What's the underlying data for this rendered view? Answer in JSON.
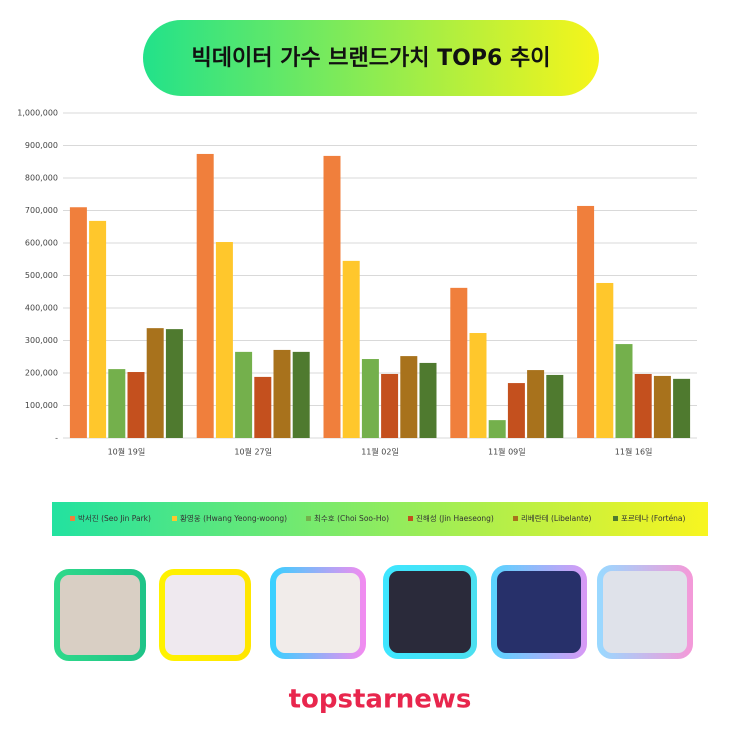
{
  "chart_data": {
    "type": "bar",
    "title": "빅데이터 가수 브랜드가치 TOP6 추이",
    "categories": [
      "10월 19일",
      "10월 27일",
      "11월 02일",
      "11월 09일",
      "11월 16일"
    ],
    "series": [
      {
        "name": "박서진 (Seo Jin Park)",
        "color": "#f07f3c",
        "values": [
          710000,
          874000,
          868000,
          462000,
          714000
        ]
      },
      {
        "name": "황영웅 (Hwang Yeong-woong)",
        "color": "#ffc72c",
        "values": [
          668000,
          603000,
          545000,
          323000,
          477000
        ]
      },
      {
        "name": "최수호 (Choi Soo-Ho)",
        "color": "#74b04c",
        "values": [
          212000,
          265000,
          243000,
          55000,
          289000
        ]
      },
      {
        "name": "진해성 (Jin Haeseong)",
        "color": "#c4501e",
        "values": [
          203000,
          188000,
          197000,
          169000,
          197000
        ]
      },
      {
        "name": "리베란테 (Libelante)",
        "color": "#a8721c",
        "values": [
          338000,
          271000,
          252000,
          209000,
          191000
        ]
      },
      {
        "name": "포르테나 (Forténa)",
        "color": "#4f7a2f",
        "values": [
          335000,
          265000,
          231000,
          194000,
          182000
        ]
      }
    ],
    "ylim": [
      0,
      1000000
    ],
    "yticks": [
      {
        "value": 0,
        "label": "-"
      },
      {
        "value": 100000,
        "label": "100,000"
      },
      {
        "value": 200000,
        "label": "200,000"
      },
      {
        "value": 300000,
        "label": "300,000"
      },
      {
        "value": 400000,
        "label": "400,000"
      },
      {
        "value": 500000,
        "label": "500,000"
      },
      {
        "value": 600000,
        "label": "600,000"
      },
      {
        "value": 700000,
        "label": "700,000"
      },
      {
        "value": 800000,
        "label": "800,000"
      },
      {
        "value": 900000,
        "label": "900,000"
      },
      {
        "value": 1000000,
        "label": "1,000,000"
      }
    ],
    "grid": true,
    "source": "topstarnews"
  }
}
